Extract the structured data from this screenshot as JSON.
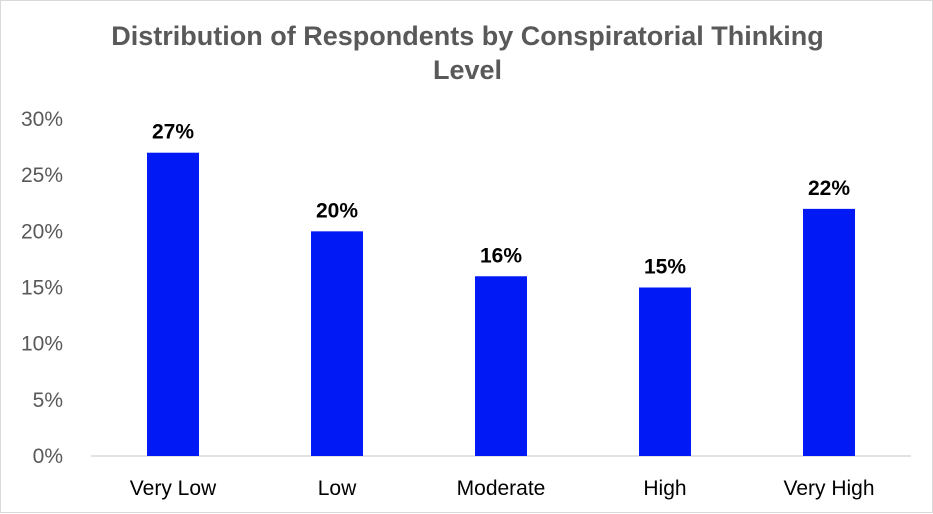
{
  "chart_data": {
    "type": "bar",
    "title": "Distribution of Respondents by Conspiratorial Thinking Level",
    "xlabel": "",
    "ylabel": "",
    "categories": [
      "Very Low",
      "Low",
      "Moderate",
      "High",
      "Very High"
    ],
    "values": [
      27,
      20,
      16,
      15,
      22
    ],
    "data_labels": [
      "27%",
      "20%",
      "16%",
      "15%",
      "22%"
    ],
    "ylim": [
      0,
      30
    ],
    "yticks": [
      0,
      5,
      10,
      15,
      20,
      25,
      30
    ],
    "ytick_labels": [
      "0%",
      "5%",
      "10%",
      "15%",
      "20%",
      "25%",
      "30%"
    ],
    "bar_color": "#0019f5",
    "grid": false,
    "legend": "none"
  }
}
